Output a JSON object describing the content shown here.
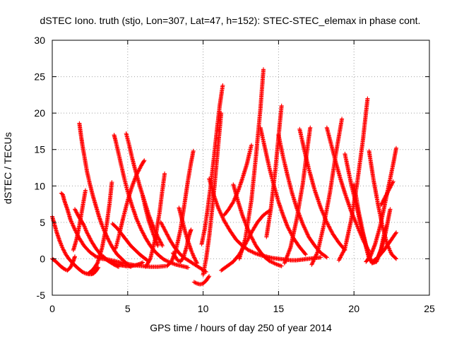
{
  "chart_data": {
    "type": "scatter",
    "title": "dSTEC Iono. truth (stjo, Lon=307, Lat=47, h=152): STEC-STEC_elemax in phase cont.",
    "xlabel": "GPS time / hours of day 250 of year 2014",
    "ylabel": "dSTEC  / TECUs",
    "xlim": [
      0,
      25
    ],
    "ylim": [
      -5,
      30
    ],
    "xticks": [
      "0",
      "5",
      "10",
      "15",
      "20",
      "25"
    ],
    "yticks": [
      "-5",
      "0",
      "5",
      "10",
      "15",
      "20",
      "25",
      "30"
    ],
    "grid": true,
    "marker": "+",
    "series_color": "#ff0000",
    "series": [
      {
        "x": [
          0.0,
          0.15,
          0.3,
          0.5,
          0.7,
          0.9,
          1.1,
          1.4,
          1.7,
          2.0,
          2.2,
          2.4,
          2.6,
          2.75,
          2.85,
          2.95,
          3.05
        ],
        "values": [
          5.8,
          4.7,
          3.6,
          2.4,
          1.4,
          0.6,
          0.0,
          -0.7,
          -1.3,
          -1.8,
          -2.0,
          -2.1,
          -2.1,
          -2.0,
          -1.8,
          -1.5,
          -1.2
        ]
      },
      {
        "x": [
          0.0,
          0.2,
          0.4,
          0.6,
          0.8,
          1.0,
          1.2,
          1.3,
          1.4,
          1.5
        ],
        "values": [
          0.0,
          -0.3,
          -0.7,
          -1.1,
          -1.4,
          -1.6,
          -1.2,
          -0.8,
          -0.3,
          0.3
        ]
      },
      {
        "x": [
          0.6,
          0.7,
          0.8,
          1.0,
          1.2,
          1.5,
          1.8,
          2.1,
          2.5,
          2.9,
          3.3,
          3.7,
          4.1,
          4.5,
          5.0,
          5.5,
          6.0,
          6.5,
          7.0,
          7.5
        ],
        "values": [
          9.0,
          8.8,
          8.0,
          6.8,
          5.4,
          4.0,
          2.8,
          1.8,
          0.9,
          0.3,
          0.0,
          -0.1,
          -0.3,
          -0.5,
          -0.7,
          -0.9,
          -1.0,
          -1.1,
          -1.1,
          -1.0
        ]
      },
      {
        "x": [
          1.5,
          1.7,
          1.9,
          2.1,
          2.3,
          2.6,
          2.9,
          3.2,
          3.5,
          3.8,
          4.1,
          4.4
        ],
        "values": [
          6.8,
          6.0,
          5.3,
          4.6,
          3.6,
          2.4,
          1.4,
          0.6,
          0.0,
          -0.4,
          -0.8,
          -1.1
        ]
      },
      {
        "x": [
          1.8,
          1.9,
          2.0,
          2.15,
          2.3,
          2.5,
          2.7,
          2.9,
          3.1,
          3.3,
          3.5,
          3.7,
          3.9,
          4.1,
          4.3,
          4.6,
          4.9,
          5.2
        ],
        "values": [
          18.6,
          17.0,
          15.6,
          13.8,
          12.0,
          10.2,
          8.6,
          7.2,
          5.8,
          4.6,
          3.6,
          2.7,
          1.9,
          1.2,
          0.6,
          0.0,
          -0.6,
          -1.1
        ]
      },
      {
        "x": [
          1.4,
          1.6,
          1.8,
          2.0,
          2.2
        ],
        "values": [
          1.2,
          2.6,
          4.6,
          7.0,
          9.4
        ]
      },
      {
        "x": [
          2.4,
          2.7,
          3.0,
          3.3,
          3.6,
          3.8,
          3.95
        ],
        "values": [
          -2.0,
          -1.5,
          -0.6,
          1.5,
          4.6,
          7.6,
          10.5
        ]
      },
      {
        "x": [
          3.4,
          3.6,
          3.8,
          4.0,
          4.3,
          4.6,
          4.9,
          5.2,
          5.5,
          5.8,
          6.0
        ],
        "values": [
          0.3,
          -0.1,
          -0.4,
          -0.6,
          -0.8,
          -0.9,
          -1.0,
          -1.0,
          -0.9,
          -0.7,
          -0.5
        ]
      },
      {
        "x": [
          4.0,
          4.3,
          4.6,
          4.9,
          5.2,
          5.5,
          5.8,
          6.1,
          6.3
        ],
        "values": [
          4.8,
          4.2,
          3.4,
          2.6,
          1.8,
          1.2,
          0.6,
          0.1,
          -0.2
        ]
      },
      {
        "x": [
          4.2,
          4.4,
          4.7,
          5.0,
          5.3,
          5.6,
          5.9,
          6.1
        ],
        "values": [
          1.4,
          3.0,
          5.6,
          8.0,
          10.0,
          11.6,
          12.8,
          13.5
        ]
      },
      {
        "x": [
          4.1,
          4.2,
          4.4,
          4.6,
          4.8,
          5.0,
          5.3,
          5.6,
          5.9,
          6.2,
          6.5,
          6.8,
          7.1,
          7.4,
          7.8,
          8.2,
          8.6,
          9.0
        ],
        "values": [
          17.0,
          16.2,
          14.4,
          12.6,
          10.8,
          9.2,
          7.2,
          5.4,
          4.0,
          2.8,
          1.8,
          1.0,
          0.4,
          -0.1,
          -0.5,
          -0.8,
          -1.0,
          -1.2
        ]
      },
      {
        "x": [
          4.9,
          5.1,
          5.3,
          5.5,
          5.8,
          6.1,
          6.4,
          6.7,
          7.0,
          7.3
        ],
        "values": [
          17.2,
          15.6,
          13.8,
          12.2,
          10.0,
          8.0,
          6.0,
          4.4,
          3.0,
          1.8
        ]
      },
      {
        "x": [
          6.0,
          6.2,
          6.4,
          6.7,
          7.0
        ],
        "values": [
          8.6,
          6.8,
          5.2,
          3.4,
          1.8
        ]
      },
      {
        "x": [
          6.2,
          6.5,
          6.8,
          7.1,
          7.3,
          7.45
        ],
        "values": [
          -1.1,
          0.0,
          2.5,
          6.2,
          9.4,
          11.7
        ]
      },
      {
        "x": [
          7.2,
          7.5,
          7.8,
          8.1,
          8.4,
          8.7,
          9.0,
          9.3,
          9.6,
          9.9,
          10.2
        ],
        "values": [
          5.0,
          3.8,
          2.6,
          1.6,
          0.8,
          0.2,
          -0.2,
          -0.6,
          -1.0,
          -1.4,
          -1.8
        ]
      },
      {
        "x": [
          7.6,
          7.9,
          8.2,
          8.5,
          8.8,
          9.0,
          9.2,
          9.35
        ],
        "values": [
          -1.0,
          -0.4,
          1.2,
          4.0,
          8.0,
          10.8,
          13.2,
          14.8
        ]
      },
      {
        "x": [
          8.0,
          8.3,
          8.5,
          8.7,
          8.9,
          9.0,
          9.1,
          9.2
        ],
        "values": [
          0.8,
          -0.2,
          -0.4,
          0.2,
          1.6,
          2.6,
          3.4,
          4.0
        ]
      },
      {
        "x": [
          8.4,
          8.6,
          8.8,
          9.0,
          9.2,
          9.4,
          9.6
        ],
        "values": [
          7.0,
          5.4,
          3.8,
          2.4,
          1.2,
          0.2,
          -0.6
        ]
      },
      {
        "x": [
          9.4,
          9.6,
          9.8,
          10.0,
          10.2,
          10.4
        ],
        "values": [
          -3.2,
          -3.4,
          -3.5,
          -3.4,
          -3.0,
          -2.4
        ]
      },
      {
        "x": [
          10.0,
          10.2,
          10.4,
          10.6,
          10.8,
          11.0,
          11.2
        ],
        "values": [
          -2.2,
          0.0,
          3.0,
          6.8,
          11.0,
          15.6,
          20.0
        ]
      },
      {
        "x": [
          9.9,
          10.1,
          10.3,
          10.5,
          10.7,
          10.9,
          11.1,
          11.3
        ],
        "values": [
          2.0,
          4.0,
          6.8,
          10.0,
          13.6,
          17.4,
          21.0,
          23.8
        ]
      },
      {
        "x": [
          10.4,
          10.7,
          11.0,
          11.4,
          11.8,
          12.2,
          12.6,
          13.0,
          13.4,
          13.8,
          14.2,
          14.6,
          15.0,
          15.4,
          15.8,
          16.2,
          16.6,
          17.0,
          17.4,
          17.8
        ],
        "values": [
          11.0,
          8.8,
          7.0,
          5.2,
          3.8,
          2.6,
          1.8,
          1.2,
          0.8,
          0.5,
          0.3,
          0.1,
          0.0,
          -0.1,
          -0.2,
          -0.2,
          -0.1,
          0.0,
          0.1,
          0.2
        ]
      },
      {
        "x": [
          11.2,
          11.6,
          12.0,
          12.4,
          12.8,
          13.2,
          13.6,
          14.0,
          14.4
        ],
        "values": [
          -1.6,
          -1.0,
          -0.4,
          0.6,
          2.0,
          3.6,
          5.0,
          6.0,
          6.6
        ]
      },
      {
        "x": [
          11.4,
          11.7,
          12.0,
          12.3,
          12.6,
          12.9,
          13.2
        ],
        "values": [
          6.0,
          6.8,
          7.8,
          9.2,
          11.0,
          13.0,
          15.6
        ]
      },
      {
        "x": [
          12.0,
          12.3,
          12.6,
          12.9,
          13.2,
          13.5,
          13.8,
          14.1,
          14.4,
          14.8,
          15.2
        ],
        "values": [
          10.2,
          8.0,
          6.0,
          4.4,
          3.0,
          1.8,
          0.9,
          0.2,
          -0.3,
          -0.7,
          -1.0
        ]
      },
      {
        "x": [
          12.4,
          12.8,
          13.2,
          13.5,
          13.8,
          14.0
        ],
        "values": [
          0.0,
          2.8,
          8.0,
          14.0,
          20.6,
          26.0
        ]
      },
      {
        "x": [
          13.8,
          14.1,
          14.4,
          14.7,
          15.0,
          15.3,
          15.6,
          16.0,
          16.4,
          16.8
        ],
        "values": [
          18.0,
          15.2,
          12.4,
          10.0,
          7.8,
          6.0,
          4.4,
          2.8,
          1.6,
          0.6
        ]
      },
      {
        "x": [
          14.2,
          14.5,
          14.8,
          15.0,
          15.2
        ],
        "values": [
          3.0,
          7.0,
          12.4,
          16.8,
          21.0
        ]
      },
      {
        "x": [
          15.0,
          15.3,
          15.6,
          15.9,
          16.2,
          16.6,
          17.0,
          17.4,
          17.8,
          18.2
        ],
        "values": [
          17.0,
          14.0,
          11.4,
          9.0,
          7.0,
          4.8,
          3.0,
          1.8,
          0.8,
          0.2
        ]
      },
      {
        "x": [
          15.4,
          15.8,
          16.2,
          16.6,
          16.9,
          17.1
        ],
        "values": [
          -0.6,
          1.6,
          5.4,
          10.2,
          15.0,
          18.0
        ]
      },
      {
        "x": [
          16.4,
          16.7,
          17.0,
          17.4,
          17.8,
          18.2,
          18.6,
          19.0,
          19.4
        ],
        "values": [
          17.8,
          15.0,
          12.4,
          9.4,
          7.0,
          5.0,
          3.4,
          2.2,
          1.2
        ]
      },
      {
        "x": [
          17.2,
          17.6,
          18.0,
          18.4,
          18.8,
          19.2
        ],
        "values": [
          -0.8,
          1.0,
          4.6,
          9.0,
          14.4,
          19.2
        ]
      },
      {
        "x": [
          18.2,
          18.5,
          18.8,
          19.1,
          19.4,
          19.8,
          20.2,
          20.6,
          21.0
        ],
        "values": [
          18.0,
          15.6,
          13.2,
          11.0,
          9.0,
          6.6,
          4.6,
          2.6,
          1.0
        ]
      },
      {
        "x": [
          19.0,
          19.4,
          19.8,
          20.2,
          20.6,
          20.9
        ],
        "values": [
          -0.2,
          1.4,
          5.2,
          10.2,
          16.4,
          22.0
        ]
      },
      {
        "x": [
          19.4,
          19.8,
          20.2,
          20.5,
          20.8,
          21.0,
          21.2,
          21.5,
          21.8,
          22.1,
          22.4
        ],
        "values": [
          14.4,
          10.4,
          7.0,
          4.0,
          1.6,
          0.0,
          -0.5,
          -0.2,
          1.2,
          3.6,
          6.8
        ]
      },
      {
        "x": [
          20.0,
          20.3,
          20.6,
          20.9,
          21.2,
          21.5,
          21.8,
          22.1
        ],
        "values": [
          10.2,
          6.6,
          3.6,
          1.0,
          -0.6,
          -0.4,
          1.4,
          4.4
        ]
      },
      {
        "x": [
          20.8,
          21.1,
          21.4,
          21.7,
          22.0,
          22.3,
          22.6,
          22.8
        ],
        "values": [
          -0.4,
          0.4,
          2.0,
          4.2,
          7.0,
          10.0,
          13.0,
          15.2
        ]
      },
      {
        "x": [
          21.0,
          21.3,
          21.6,
          21.9,
          22.2,
          22.5,
          22.8
        ],
        "values": [
          14.8,
          10.8,
          7.4,
          4.4,
          2.0,
          0.6,
          0.0
        ]
      },
      {
        "x": [
          21.2,
          21.6,
          22.0,
          22.4,
          22.8
        ],
        "values": [
          -0.4,
          0.2,
          1.2,
          2.4,
          3.6
        ]
      },
      {
        "x": [
          21.8,
          22.0,
          22.2,
          22.4,
          22.6
        ],
        "values": [
          7.4,
          8.2,
          9.0,
          9.8,
          10.6
        ]
      }
    ]
  }
}
